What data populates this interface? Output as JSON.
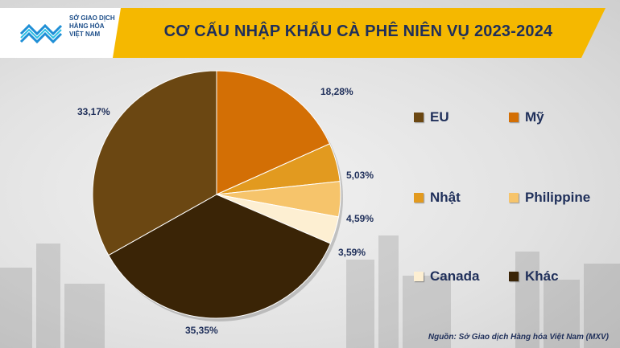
{
  "logo": {
    "line1": "SỞ GIAO DỊCH",
    "line2": "HÀNG HÓA",
    "line3": "VIỆT NAM"
  },
  "chart_data": {
    "type": "pie",
    "title": "CƠ CẤU NHẬP KHẨU CÀ PHÊ NIÊN VỤ 2023-2024",
    "slices": [
      {
        "name": "Mỹ",
        "value": 18.28,
        "label": "18,28%",
        "color": "#d36f05"
      },
      {
        "name": "Nhật",
        "value": 5.03,
        "label": "5,03%",
        "color": "#e29a1f"
      },
      {
        "name": "Philippine",
        "value": 4.59,
        "label": "4,59%",
        "color": "#f6c46b"
      },
      {
        "name": "Canada",
        "value": 3.59,
        "label": "3,59%",
        "color": "#fdefd2"
      },
      {
        "name": "Khác",
        "value": 35.35,
        "label": "35,35%",
        "color": "#3a2406"
      },
      {
        "name": "EU",
        "value": 33.17,
        "label": "33,17%",
        "color": "#6b4712"
      }
    ],
    "legend": [
      {
        "name": "EU",
        "color": "#6b4712"
      },
      {
        "name": "Mỹ",
        "color": "#d36f05"
      },
      {
        "name": "Nhật",
        "color": "#e29a1f"
      },
      {
        "name": "Philippine",
        "color": "#f6c46b"
      },
      {
        "name": "Canada",
        "color": "#fdefd2"
      },
      {
        "name": "Khác",
        "color": "#3a2406"
      }
    ],
    "legend_placement": "right"
  },
  "source": "Nguồn: Sở Giao dịch Hàng hóa Việt Nam (MXV)",
  "colors": {
    "banner": "#f5b800",
    "title_text": "#1f2f5a",
    "logo_blue": "#1f8fd6"
  }
}
